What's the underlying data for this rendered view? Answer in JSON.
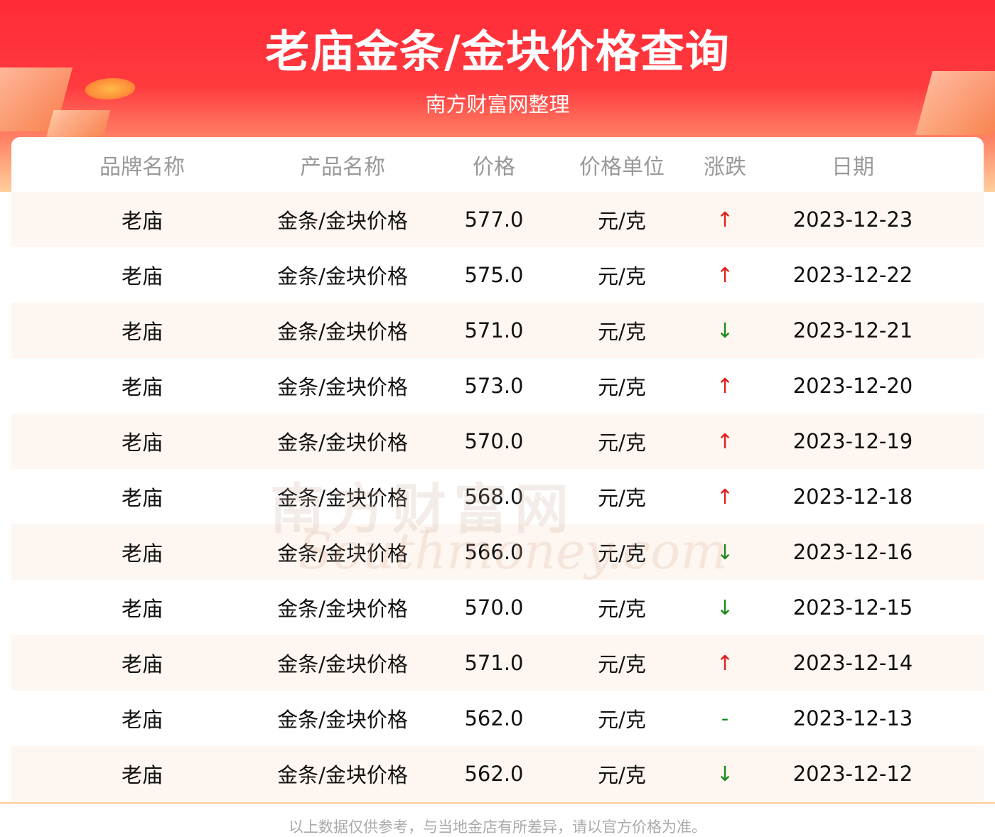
{
  "header": {
    "title": "老庙金条/金块价格查询",
    "subtitle": "南方财富网整理"
  },
  "table": {
    "columns": [
      "品牌名称",
      "产品名称",
      "价格",
      "价格单位",
      "涨跌",
      "日期"
    ],
    "rows": [
      {
        "brand": "老庙",
        "product": "金条/金块价格",
        "price": "577.0",
        "unit": "元/克",
        "change": "↑",
        "trend": "up",
        "date": "2023-12-23"
      },
      {
        "brand": "老庙",
        "product": "金条/金块价格",
        "price": "575.0",
        "unit": "元/克",
        "change": "↑",
        "trend": "up",
        "date": "2023-12-22"
      },
      {
        "brand": "老庙",
        "product": "金条/金块价格",
        "price": "571.0",
        "unit": "元/克",
        "change": "↓",
        "trend": "down",
        "date": "2023-12-21"
      },
      {
        "brand": "老庙",
        "product": "金条/金块价格",
        "price": "573.0",
        "unit": "元/克",
        "change": "↑",
        "trend": "up",
        "date": "2023-12-20"
      },
      {
        "brand": "老庙",
        "product": "金条/金块价格",
        "price": "570.0",
        "unit": "元/克",
        "change": "↑",
        "trend": "up",
        "date": "2023-12-19"
      },
      {
        "brand": "老庙",
        "product": "金条/金块价格",
        "price": "568.0",
        "unit": "元/克",
        "change": "↑",
        "trend": "up",
        "date": "2023-12-18"
      },
      {
        "brand": "老庙",
        "product": "金条/金块价格",
        "price": "566.0",
        "unit": "元/克",
        "change": "↓",
        "trend": "down",
        "date": "2023-12-16"
      },
      {
        "brand": "老庙",
        "product": "金条/金块价格",
        "price": "570.0",
        "unit": "元/克",
        "change": "↓",
        "trend": "down",
        "date": "2023-12-15"
      },
      {
        "brand": "老庙",
        "product": "金条/金块价格",
        "price": "571.0",
        "unit": "元/克",
        "change": "↑",
        "trend": "up",
        "date": "2023-12-14"
      },
      {
        "brand": "老庙",
        "product": "金条/金块价格",
        "price": "562.0",
        "unit": "元/克",
        "change": "-",
        "trend": "flat",
        "date": "2023-12-13"
      },
      {
        "brand": "老庙",
        "product": "金条/金块价格",
        "price": "562.0",
        "unit": "元/克",
        "change": "↓",
        "trend": "down",
        "date": "2023-12-12"
      }
    ]
  },
  "watermark": {
    "cn": "南方财富网",
    "en": "Southmoney.com"
  },
  "footer": {
    "note": "以上数据仅供参考，与当地金店有所差异，请以官方价格为准。"
  },
  "colors": {
    "up": "#e0201c",
    "down": "#1a8a1a",
    "header_red": "#ff2b36"
  }
}
